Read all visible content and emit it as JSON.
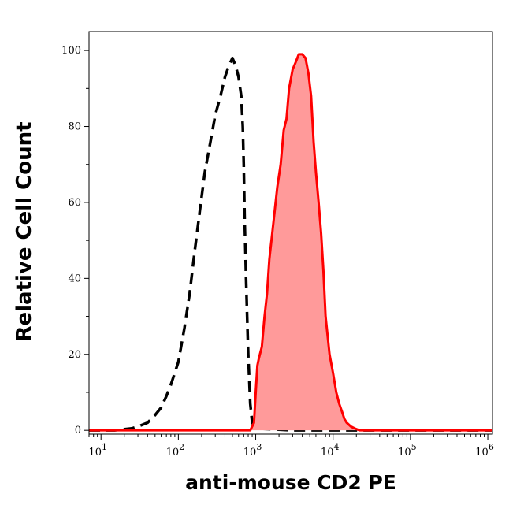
{
  "chart_data": {
    "type": "area",
    "xlabel": "anti-mouse CD2 PE",
    "ylabel": "Relative Cell Count",
    "xscale": "log",
    "xlim": [
      7,
      1150000
    ],
    "ylim": [
      -1,
      105
    ],
    "xticks": [
      {
        "value": 10,
        "base": "10",
        "exp": "1"
      },
      {
        "value": 100,
        "base": "10",
        "exp": "2"
      },
      {
        "value": 1000,
        "base": "10",
        "exp": "3"
      },
      {
        "value": 10000,
        "base": "10",
        "exp": "4"
      },
      {
        "value": 100000,
        "base": "10",
        "exp": "5"
      },
      {
        "value": 1000000,
        "base": "10",
        "exp": "6"
      }
    ],
    "yticks": [
      {
        "value": 0,
        "label": "0"
      },
      {
        "value": 20,
        "label": "20"
      },
      {
        "value": 40,
        "label": "40"
      },
      {
        "value": 60,
        "label": "60"
      },
      {
        "value": 80,
        "label": "80"
      },
      {
        "value": 100,
        "label": "100"
      }
    ],
    "grid": false,
    "series": [
      {
        "style": "dashed",
        "fill": false,
        "color": "#000000",
        "x": [
          7,
          15,
          25,
          30,
          40,
          50,
          60,
          70,
          80,
          100,
          120,
          140,
          160,
          190,
          220,
          260,
          300,
          350,
          400,
          450,
          500,
          550,
          600,
          650,
          680,
          700,
          720,
          750,
          800,
          850,
          900,
          1000,
          3000,
          10000,
          100000,
          1150000
        ],
        "y": [
          0,
          0,
          0.5,
          1,
          2,
          4,
          6,
          9,
          12,
          18,
          27,
          36,
          46,
          58,
          68,
          76,
          83,
          88,
          93,
          96,
          98,
          96,
          93,
          88,
          80,
          70,
          55,
          40,
          20,
          7,
          2,
          0.5,
          0,
          0,
          0,
          0
        ]
      },
      {
        "style": "solid",
        "fill": true,
        "color": "#ff0000",
        "fill_color": "#ff9a9a",
        "x": [
          7,
          500,
          850,
          950,
          1000,
          1050,
          1100,
          1200,
          1300,
          1400,
          1500,
          1700,
          1900,
          2100,
          2300,
          2500,
          2700,
          3000,
          3300,
          3600,
          4000,
          4400,
          4800,
          5200,
          5600,
          6000,
          6500,
          7000,
          7500,
          8000,
          9000,
          10000,
          11000,
          12000,
          13000,
          14000,
          15000,
          17000,
          19000,
          22000,
          26000,
          30000,
          40000,
          1150000
        ],
        "y": [
          0,
          0,
          0,
          2,
          10,
          17,
          19,
          22,
          30,
          36,
          45,
          55,
          64,
          70,
          79,
          82,
          90,
          95,
          97,
          99,
          99,
          98,
          94,
          88,
          76,
          68,
          60,
          52,
          42,
          30,
          20,
          15,
          10,
          7,
          5,
          3,
          2,
          1,
          0.5,
          0,
          0,
          0,
          0,
          0
        ]
      }
    ]
  }
}
